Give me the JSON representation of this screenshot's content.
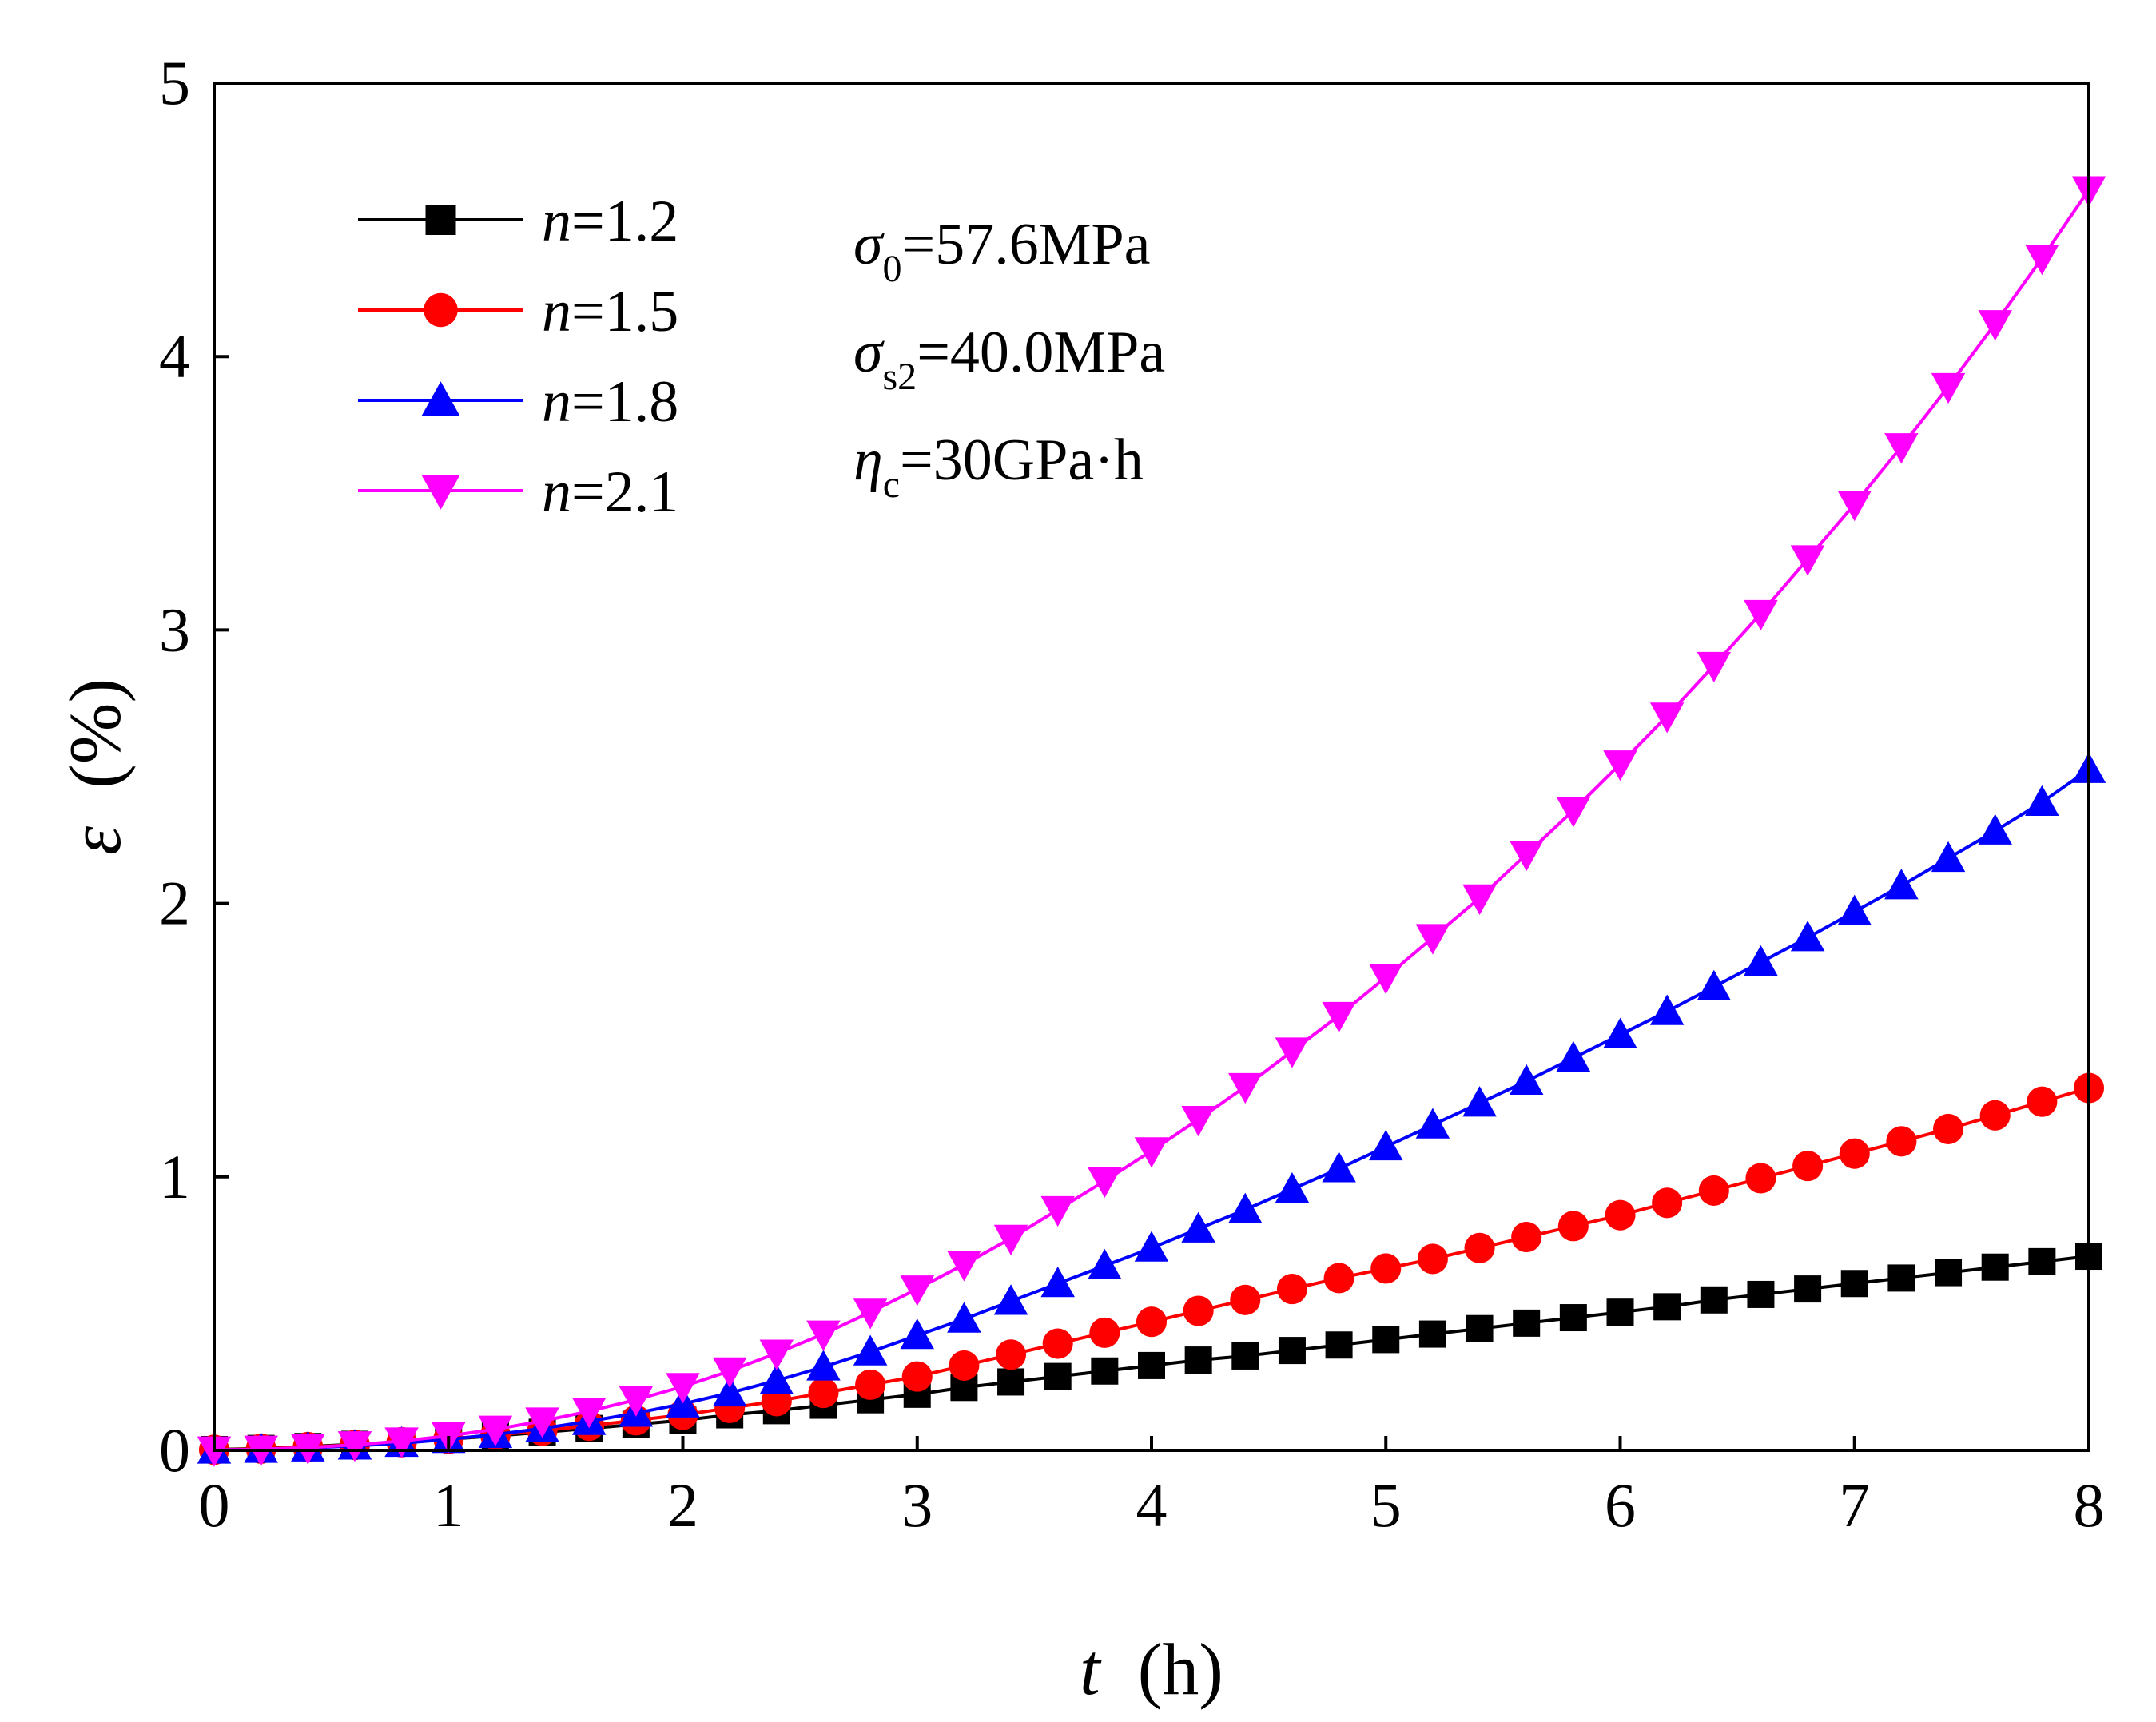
{
  "chart_data": {
    "type": "line",
    "xlabel": {
      "var": "t",
      "unit": "(h)"
    },
    "ylabel": {
      "var": "ε",
      "unit": "(%)"
    },
    "xlim": [
      0,
      8
    ],
    "ylim": [
      0,
      5
    ],
    "xticks": [
      "0",
      "1",
      "2",
      "3",
      "4",
      "5",
      "6",
      "7",
      "8"
    ],
    "yticks": [
      "0",
      "1",
      "2",
      "3",
      "4",
      "5"
    ],
    "grid": false,
    "legend_position": "top-left",
    "annotations": [
      {
        "sym": "σ",
        "sub": "0",
        "rest": "=57.6MPa"
      },
      {
        "sym": "σ",
        "sub": "s2",
        "rest": "=40.0MPa"
      },
      {
        "sym": "η",
        "sub": "c",
        "rest": "=30GPa·h"
      }
    ],
    "x": [
      0,
      0.2,
      0.4,
      0.6,
      0.8,
      1.0,
      1.2,
      1.4,
      1.6,
      1.8,
      2.0,
      2.2,
      2.4,
      2.6,
      2.8,
      3.0,
      3.2,
      3.4,
      3.6,
      3.8,
      4.0,
      4.2,
      4.4,
      4.6,
      4.8,
      5.0,
      5.2,
      5.4,
      5.6,
      5.8,
      6.0,
      6.2,
      6.4,
      6.6,
      6.8,
      7.0,
      7.2,
      7.4,
      7.6,
      7.8,
      8.0
    ],
    "series": [
      {
        "name": "n=1.2",
        "label_var": "n",
        "label_rest": "=1.2",
        "color": "#000000",
        "marker": "square",
        "values": [
          0.003,
          0.007,
          0.014,
          0.022,
          0.031,
          0.041,
          0.053,
          0.066,
          0.08,
          0.095,
          0.11,
          0.13,
          0.145,
          0.165,
          0.185,
          0.205,
          0.23,
          0.25,
          0.27,
          0.29,
          0.31,
          0.33,
          0.345,
          0.365,
          0.385,
          0.405,
          0.425,
          0.445,
          0.465,
          0.485,
          0.505,
          0.525,
          0.55,
          0.57,
          0.59,
          0.61,
          0.63,
          0.65,
          0.67,
          0.69,
          0.71
        ]
      },
      {
        "name": "n=1.5",
        "label_var": "n",
        "label_rest": "=1.5",
        "color": "#ff0000",
        "marker": "circle",
        "values": [
          0.002,
          0.006,
          0.012,
          0.02,
          0.03,
          0.042,
          0.056,
          0.072,
          0.09,
          0.11,
          0.13,
          0.155,
          0.18,
          0.21,
          0.24,
          0.27,
          0.31,
          0.35,
          0.39,
          0.43,
          0.47,
          0.51,
          0.55,
          0.59,
          0.63,
          0.665,
          0.7,
          0.74,
          0.78,
          0.82,
          0.86,
          0.905,
          0.95,
          0.995,
          1.04,
          1.085,
          1.13,
          1.175,
          1.225,
          1.275,
          1.325
        ]
      },
      {
        "name": "n=1.8",
        "label_var": "n",
        "label_rest": "=1.8",
        "color": "#0000ff",
        "marker": "triangle-up",
        "values": [
          0.001,
          0.004,
          0.009,
          0.016,
          0.026,
          0.04,
          0.058,
          0.08,
          0.106,
          0.136,
          0.17,
          0.21,
          0.255,
          0.305,
          0.36,
          0.42,
          0.48,
          0.545,
          0.61,
          0.675,
          0.74,
          0.81,
          0.88,
          0.955,
          1.03,
          1.11,
          1.19,
          1.27,
          1.35,
          1.435,
          1.52,
          1.605,
          1.695,
          1.785,
          1.875,
          1.97,
          2.065,
          2.165,
          2.265,
          2.37,
          2.49
        ]
      },
      {
        "name": "n=2.1",
        "label_var": "n",
        "label_rest": "=2.1",
        "color": "#ff00ff",
        "marker": "triangle-down",
        "values": [
          0.001,
          0.004,
          0.01,
          0.02,
          0.034,
          0.053,
          0.077,
          0.107,
          0.143,
          0.185,
          0.233,
          0.29,
          0.355,
          0.425,
          0.505,
          0.59,
          0.68,
          0.775,
          0.88,
          0.985,
          1.095,
          1.21,
          1.33,
          1.46,
          1.59,
          1.73,
          1.875,
          2.02,
          2.18,
          2.34,
          2.51,
          2.685,
          2.87,
          3.06,
          3.26,
          3.46,
          3.67,
          3.89,
          4.12,
          4.36,
          4.61
        ]
      }
    ]
  }
}
